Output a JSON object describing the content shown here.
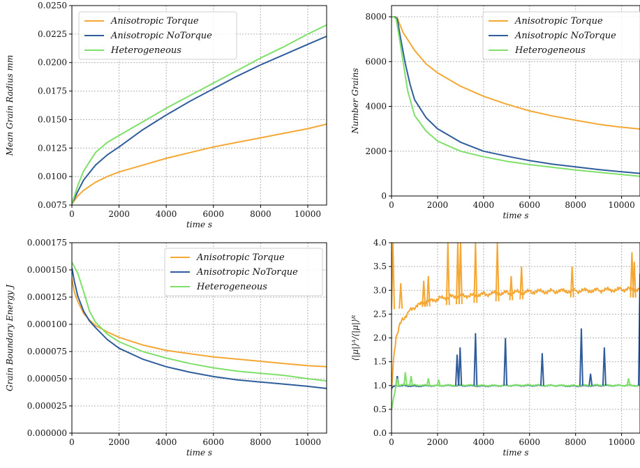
{
  "colors": {
    "torque": "#f5a733",
    "notorque": "#2f5d9b",
    "hetero": "#7ee068",
    "grid": "#b0b0b0"
  },
  "legend": {
    "torque": "Anisotropic Torque",
    "notorque": "Anisotropic NoTorque",
    "hetero": "Heterogeneous"
  },
  "chart_data": [
    {
      "type": "line",
      "xlabel": "time s",
      "ylabel": "Mean Grain Radius mm",
      "xlim": [
        0,
        10800
      ],
      "ylim": [
        0.0075,
        0.025
      ],
      "xticks": [
        "0",
        "2000",
        "4000",
        "6000",
        "8000",
        "10000"
      ],
      "yticks": [
        "0.0075",
        "0.0100",
        "0.0125",
        "0.0150",
        "0.0175",
        "0.0200",
        "0.0225",
        "0.0250"
      ],
      "legend_position": "top-left",
      "grid": true,
      "series": [
        {
          "name": "Anisotropic Torque",
          "x": [
            0,
            250,
            500,
            1000,
            1500,
            2000,
            3000,
            4000,
            5000,
            6000,
            7000,
            8000,
            9000,
            10000,
            10800
          ],
          "y": [
            0.0076,
            0.0083,
            0.0088,
            0.0095,
            0.01,
            0.0104,
            0.011,
            0.0116,
            0.0121,
            0.0126,
            0.013,
            0.0134,
            0.0138,
            0.0142,
            0.0146
          ]
        },
        {
          "name": "Anisotropic NoTorque",
          "x": [
            0,
            250,
            500,
            1000,
            1500,
            2000,
            3000,
            4000,
            5000,
            6000,
            7000,
            8000,
            9000,
            10000,
            10800
          ],
          "y": [
            0.0076,
            0.0087,
            0.0097,
            0.011,
            0.0119,
            0.0126,
            0.0141,
            0.0154,
            0.0166,
            0.0177,
            0.0188,
            0.0198,
            0.0207,
            0.0216,
            0.0223
          ]
        },
        {
          "name": "Heterogeneous",
          "x": [
            0,
            250,
            500,
            1000,
            1500,
            2000,
            3000,
            4000,
            5000,
            6000,
            7000,
            8000,
            9000,
            10000,
            10800
          ],
          "y": [
            0.0076,
            0.0092,
            0.0105,
            0.0121,
            0.013,
            0.0136,
            0.0148,
            0.016,
            0.0171,
            0.0182,
            0.0193,
            0.0204,
            0.0214,
            0.0225,
            0.0233
          ]
        }
      ]
    },
    {
      "type": "line",
      "xlabel": "time s",
      "ylabel": "Number Grains",
      "xlim": [
        0,
        10800
      ],
      "ylim": [
        0,
        8500
      ],
      "xticks": [
        "0",
        "2000",
        "4000",
        "6000",
        "8000",
        "10000"
      ],
      "yticks": [
        "0",
        "2000",
        "4000",
        "6000",
        "8000"
      ],
      "legend_position": "top-right",
      "grid": true,
      "series": [
        {
          "name": "Anisotropic Torque",
          "x": [
            0,
            150,
            250,
            500,
            1000,
            1500,
            2000,
            3000,
            4000,
            5000,
            6000,
            7000,
            8000,
            9000,
            10000,
            10800
          ],
          "y": [
            8000,
            8000,
            7950,
            7300,
            6500,
            5900,
            5500,
            4900,
            4450,
            4100,
            3800,
            3570,
            3380,
            3200,
            3070,
            2990
          ]
        },
        {
          "name": "Anisotropic NoTorque",
          "x": [
            0,
            150,
            250,
            400,
            600,
            800,
            1000,
            1500,
            2000,
            3000,
            4000,
            5000,
            6000,
            7000,
            8000,
            9000,
            10000,
            10800
          ],
          "y": [
            8000,
            8000,
            7900,
            7000,
            5900,
            5000,
            4300,
            3500,
            3000,
            2400,
            2000,
            1780,
            1580,
            1420,
            1300,
            1180,
            1080,
            1010
          ]
        },
        {
          "name": "Heterogeneous",
          "x": [
            0,
            100,
            200,
            350,
            500,
            700,
            1000,
            1500,
            2000,
            3000,
            4000,
            5000,
            6000,
            7000,
            8000,
            9000,
            10000,
            10800
          ],
          "y": [
            8000,
            8000,
            7900,
            7000,
            6000,
            4700,
            3600,
            2900,
            2450,
            2000,
            1750,
            1550,
            1400,
            1280,
            1160,
            1060,
            960,
            880
          ]
        }
      ]
    },
    {
      "type": "line",
      "xlabel": "time s",
      "ylabel": "Grain Boundary Energy J",
      "xlim": [
        0,
        10800
      ],
      "ylim": [
        0,
        0.000175
      ],
      "xticks": [
        "0",
        "2000",
        "4000",
        "6000",
        "8000",
        "10000"
      ],
      "yticks": [
        "0.000000",
        "0.000025",
        "0.000050",
        "0.000075",
        "0.000100",
        "0.000125",
        "0.000150",
        "0.000175"
      ],
      "legend_position": "top-right",
      "grid": true,
      "series": [
        {
          "name": "Anisotropic Torque",
          "x": [
            0,
            100,
            250,
            500,
            750,
            1000,
            1500,
            2000,
            3000,
            4000,
            5000,
            6000,
            7000,
            8000,
            9000,
            10000,
            10800
          ],
          "y": [
            0.000142,
            0.00013,
            0.000121,
            0.00011,
            0.000104,
            9.9e-05,
            9.3e-05,
            8.8e-05,
            8.1e-05,
            7.6e-05,
            7.3e-05,
            7e-05,
            6.8e-05,
            6.6e-05,
            6.4e-05,
            6.2e-05,
            6.1e-05
          ]
        },
        {
          "name": "Anisotropic NoTorque",
          "x": [
            0,
            100,
            250,
            500,
            750,
            1000,
            1500,
            2000,
            3000,
            4000,
            5000,
            6000,
            7000,
            8000,
            9000,
            10000,
            10800
          ],
          "y": [
            0.000152,
            0.00014,
            0.000126,
            0.000112,
            0.000103,
            9.7e-05,
            8.6e-05,
            7.8e-05,
            6.8e-05,
            6.1e-05,
            5.6e-05,
            5.2e-05,
            4.9e-05,
            4.7e-05,
            4.5e-05,
            4.3e-05,
            4.1e-05
          ]
        },
        {
          "name": "Heterogeneous",
          "x": [
            0,
            100,
            250,
            500,
            750,
            1000,
            1500,
            2000,
            3000,
            4000,
            5000,
            6000,
            7000,
            8000,
            9000,
            10000,
            10800
          ],
          "y": [
            0.000157,
            0.000153,
            0.000147,
            0.00013,
            0.000112,
            0.000102,
            9.1e-05,
            8.4e-05,
            7.5e-05,
            6.9e-05,
            6.4e-05,
            6e-05,
            5.7e-05,
            5.5e-05,
            5.3e-05,
            5e-05,
            4.8e-05
          ]
        }
      ]
    },
    {
      "type": "line",
      "xlabel": "time s",
      "ylabel": "⟨|μ|⟩ᴬ/⟨|μ|⟩ᴿ",
      "xlim": [
        0,
        10800
      ],
      "ylim": [
        0,
        4
      ],
      "xticks": [
        "0",
        "2000",
        "4000",
        "6000",
        "8000",
        "10000"
      ],
      "yticks": [
        "0.0",
        "0.5",
        "1.0",
        "1.5",
        "2.0",
        "2.5",
        "3.0",
        "3.5",
        "4.0"
      ],
      "grid": true,
      "series": [
        {
          "name": "Anisotropic Torque",
          "x": [
            0,
            100,
            200,
            300,
            500,
            750,
            1000,
            1500,
            2000,
            2500,
            3000,
            3500,
            4000,
            5000,
            6000,
            7000,
            8000,
            9000,
            10000,
            10800
          ],
          "y": [
            0.9,
            1.6,
            2.0,
            2.2,
            2.4,
            2.55,
            2.65,
            2.75,
            2.82,
            2.86,
            2.88,
            2.9,
            2.92,
            2.95,
            2.97,
            2.98,
            2.99,
            3.0,
            3.02,
            3.03
          ]
        },
        {
          "name": "Anisotropic NoTorque",
          "x": [
            0,
            200,
            500,
            1000,
            2000,
            3000,
            4000,
            5000,
            6000,
            7000,
            8000,
            9000,
            10000,
            10800
          ],
          "y": [
            0.95,
            1.0,
            1.0,
            0.99,
            1.0,
            1.0,
            0.99,
            1.0,
            1.0,
            1.0,
            0.99,
            1.0,
            1.0,
            1.0
          ]
        },
        {
          "name": "Heterogeneous",
          "x": [
            0,
            200,
            500,
            1000,
            2000,
            3000,
            4000,
            5000,
            6000,
            7000,
            8000,
            9000,
            10000,
            10800
          ],
          "y": [
            0.5,
            1.0,
            1.02,
            1.01,
            1.0,
            1.01,
            1.0,
            1.0,
            1.01,
            1.0,
            1.0,
            1.01,
            1.0,
            1.0
          ]
        }
      ],
      "spikes": [
        {
          "series": "Anisotropic Torque",
          "x": [
            60,
            400,
            1400,
            1600,
            2450,
            2880,
            3000,
            3650,
            4600,
            5200,
            5650,
            7850,
            10450,
            10550
          ],
          "y": [
            4.0,
            3.15,
            3.2,
            3.3,
            4.0,
            4.0,
            4.0,
            4.0,
            4.0,
            3.3,
            3.5,
            3.5,
            3.8,
            3.6
          ]
        },
        {
          "series": "Anisotropic NoTorque",
          "x": [
            250,
            2850,
            2980,
            3650,
            4950,
            6550,
            8250,
            8650,
            9250,
            10800
          ],
          "y": [
            1.2,
            1.65,
            1.8,
            2.1,
            2.0,
            1.68,
            2.2,
            1.25,
            1.8,
            3.35
          ]
        },
        {
          "series": "Heterogeneous",
          "x": [
            250,
            600,
            850,
            1600,
            2050,
            10300
          ],
          "y": [
            1.15,
            1.28,
            1.2,
            1.15,
            1.12,
            1.15
          ]
        }
      ]
    }
  ]
}
